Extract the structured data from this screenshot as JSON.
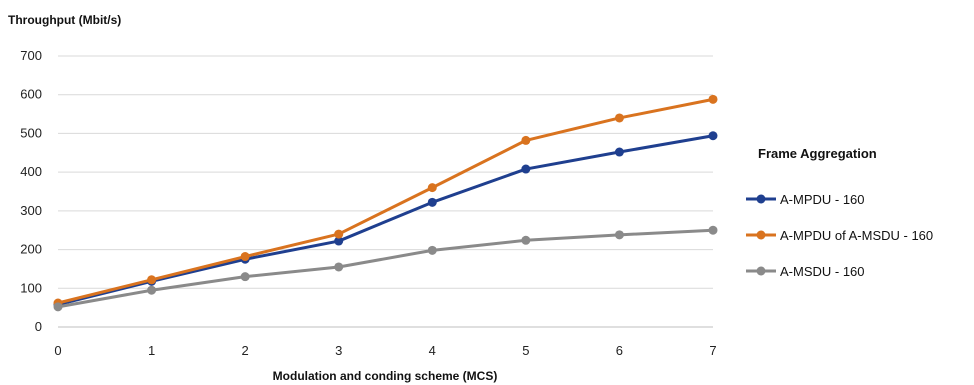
{
  "chart_data": {
    "type": "line",
    "title": "",
    "ylabel": "Throughput (Mbit/s)",
    "xlabel": "Modulation and conding scheme (MCS)",
    "x": [
      0,
      1,
      2,
      3,
      4,
      5,
      6,
      7
    ],
    "xticks": [
      "0",
      "1",
      "2",
      "3",
      "4",
      "5",
      "6",
      "7"
    ],
    "yticks": [
      "0",
      "100",
      "200",
      "300",
      "400",
      "500",
      "600",
      "700"
    ],
    "xlim": [
      0,
      7
    ],
    "ylim": [
      0,
      700
    ],
    "grid": "horizontal",
    "legend": {
      "title": "Frame Aggregation",
      "position": "right"
    },
    "series": [
      {
        "name": "A-MPDU - 160",
        "color": "#1f3f8f",
        "values": [
          58,
          118,
          175,
          222,
          322,
          408,
          452,
          494
        ]
      },
      {
        "name": "A-MPDU of A-MSDU - 160",
        "color": "#d9731f",
        "values": [
          62,
          122,
          182,
          240,
          360,
          482,
          540,
          588
        ]
      },
      {
        "name": "A-MSDU - 160",
        "color": "#8a8a8a",
        "values": [
          52,
          95,
          130,
          155,
          198,
          224,
          238,
          250
        ]
      }
    ]
  }
}
